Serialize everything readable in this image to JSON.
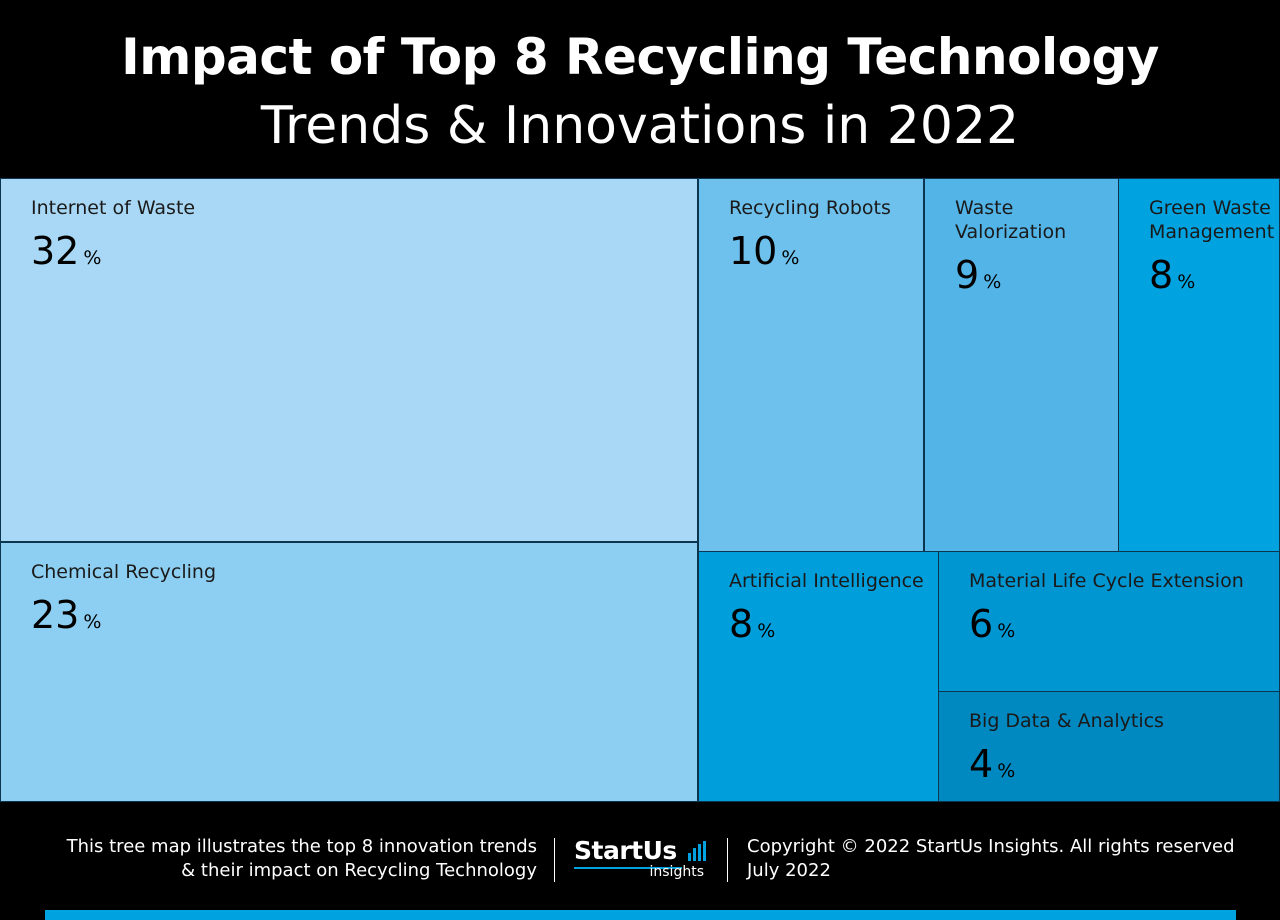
{
  "header": {
    "title_line1": "Impact of Top 8 Recycling Technology",
    "title_line2": "Trends & Innovations in 2022"
  },
  "chart_data": {
    "type": "treemap",
    "title": "Impact of Top 8 Recycling Technology Trends & Innovations in 2022",
    "unit": "%",
    "items": [
      {
        "label": "Internet of Waste",
        "value": 32,
        "color": "#a8d8f5"
      },
      {
        "label": "Chemical Recycling",
        "value": 23,
        "color": "#8dcff2"
      },
      {
        "label": "Recycling Robots",
        "value": 10,
        "color": "#6ec1ec"
      },
      {
        "label": "Waste Valorization",
        "value": 9,
        "color": "#52b4e7"
      },
      {
        "label": "Green Waste Management",
        "value": 8,
        "color": "#00a3e0"
      },
      {
        "label": "Artificial Intelligence",
        "value": 8,
        "color": "#009fdc"
      },
      {
        "label": "Material Life Cycle Extension",
        "value": 6,
        "color": "#0096d2"
      },
      {
        "label": "Big Data & Analytics",
        "value": 4,
        "color": "#0088c0"
      }
    ]
  },
  "footer": {
    "description_line1": "This tree map illustrates the top 8 innovation trends",
    "description_line2": "& their impact on Recycling Technology",
    "logo_main": "StartUs",
    "logo_sub": "insights",
    "copyright": "Copyright © 2022 StartUs Insights. All rights reserved",
    "date": "July 2022"
  },
  "colors": {
    "background": "#000000",
    "accent": "#00a3e0",
    "border": "#0c3550"
  }
}
